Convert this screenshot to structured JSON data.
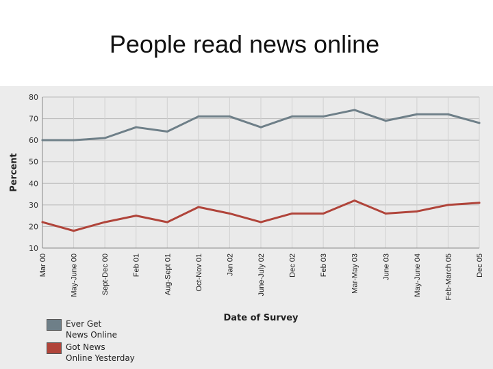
{
  "slide": {
    "title": "People read  news online"
  },
  "chart_data": {
    "type": "line",
    "title": "",
    "xlabel": "Date of Survey",
    "ylabel": "Percent",
    "ylim": [
      10,
      80
    ],
    "yticks": [
      10,
      20,
      30,
      40,
      50,
      60,
      70,
      80
    ],
    "grid": true,
    "legend_position": "bottom-left",
    "categories": [
      "Mar 00",
      "May-June 00",
      "Sept-Dec 00",
      "Feb 01",
      "Aug-Sept 01",
      "Oct-Nov 01",
      "Jan 02",
      "June-July 02",
      "Dec 02",
      "Feb 03",
      "Mar-May 03",
      "June 03",
      "May-June 04",
      "Feb-March 05",
      "Dec 05"
    ],
    "series": [
      {
        "name": "Ever Get News Online",
        "color": "#6e7f88",
        "values": [
          60,
          60,
          61,
          66,
          64,
          71,
          71,
          66,
          71,
          71,
          74,
          69,
          72,
          72,
          68
        ]
      },
      {
        "name": "Got News Online Yesterday",
        "color": "#b0443a",
        "values": [
          22,
          18,
          22,
          25,
          22,
          29,
          26,
          22,
          26,
          26,
          32,
          26,
          27,
          30,
          31
        ]
      }
    ],
    "legend": [
      {
        "label_line1": "Ever Get",
        "label_line2": "News Online",
        "color": "#6e7f88"
      },
      {
        "label_line1": "Got News",
        "label_line2": "Online Yesterday",
        "color": "#b0443a"
      }
    ]
  }
}
